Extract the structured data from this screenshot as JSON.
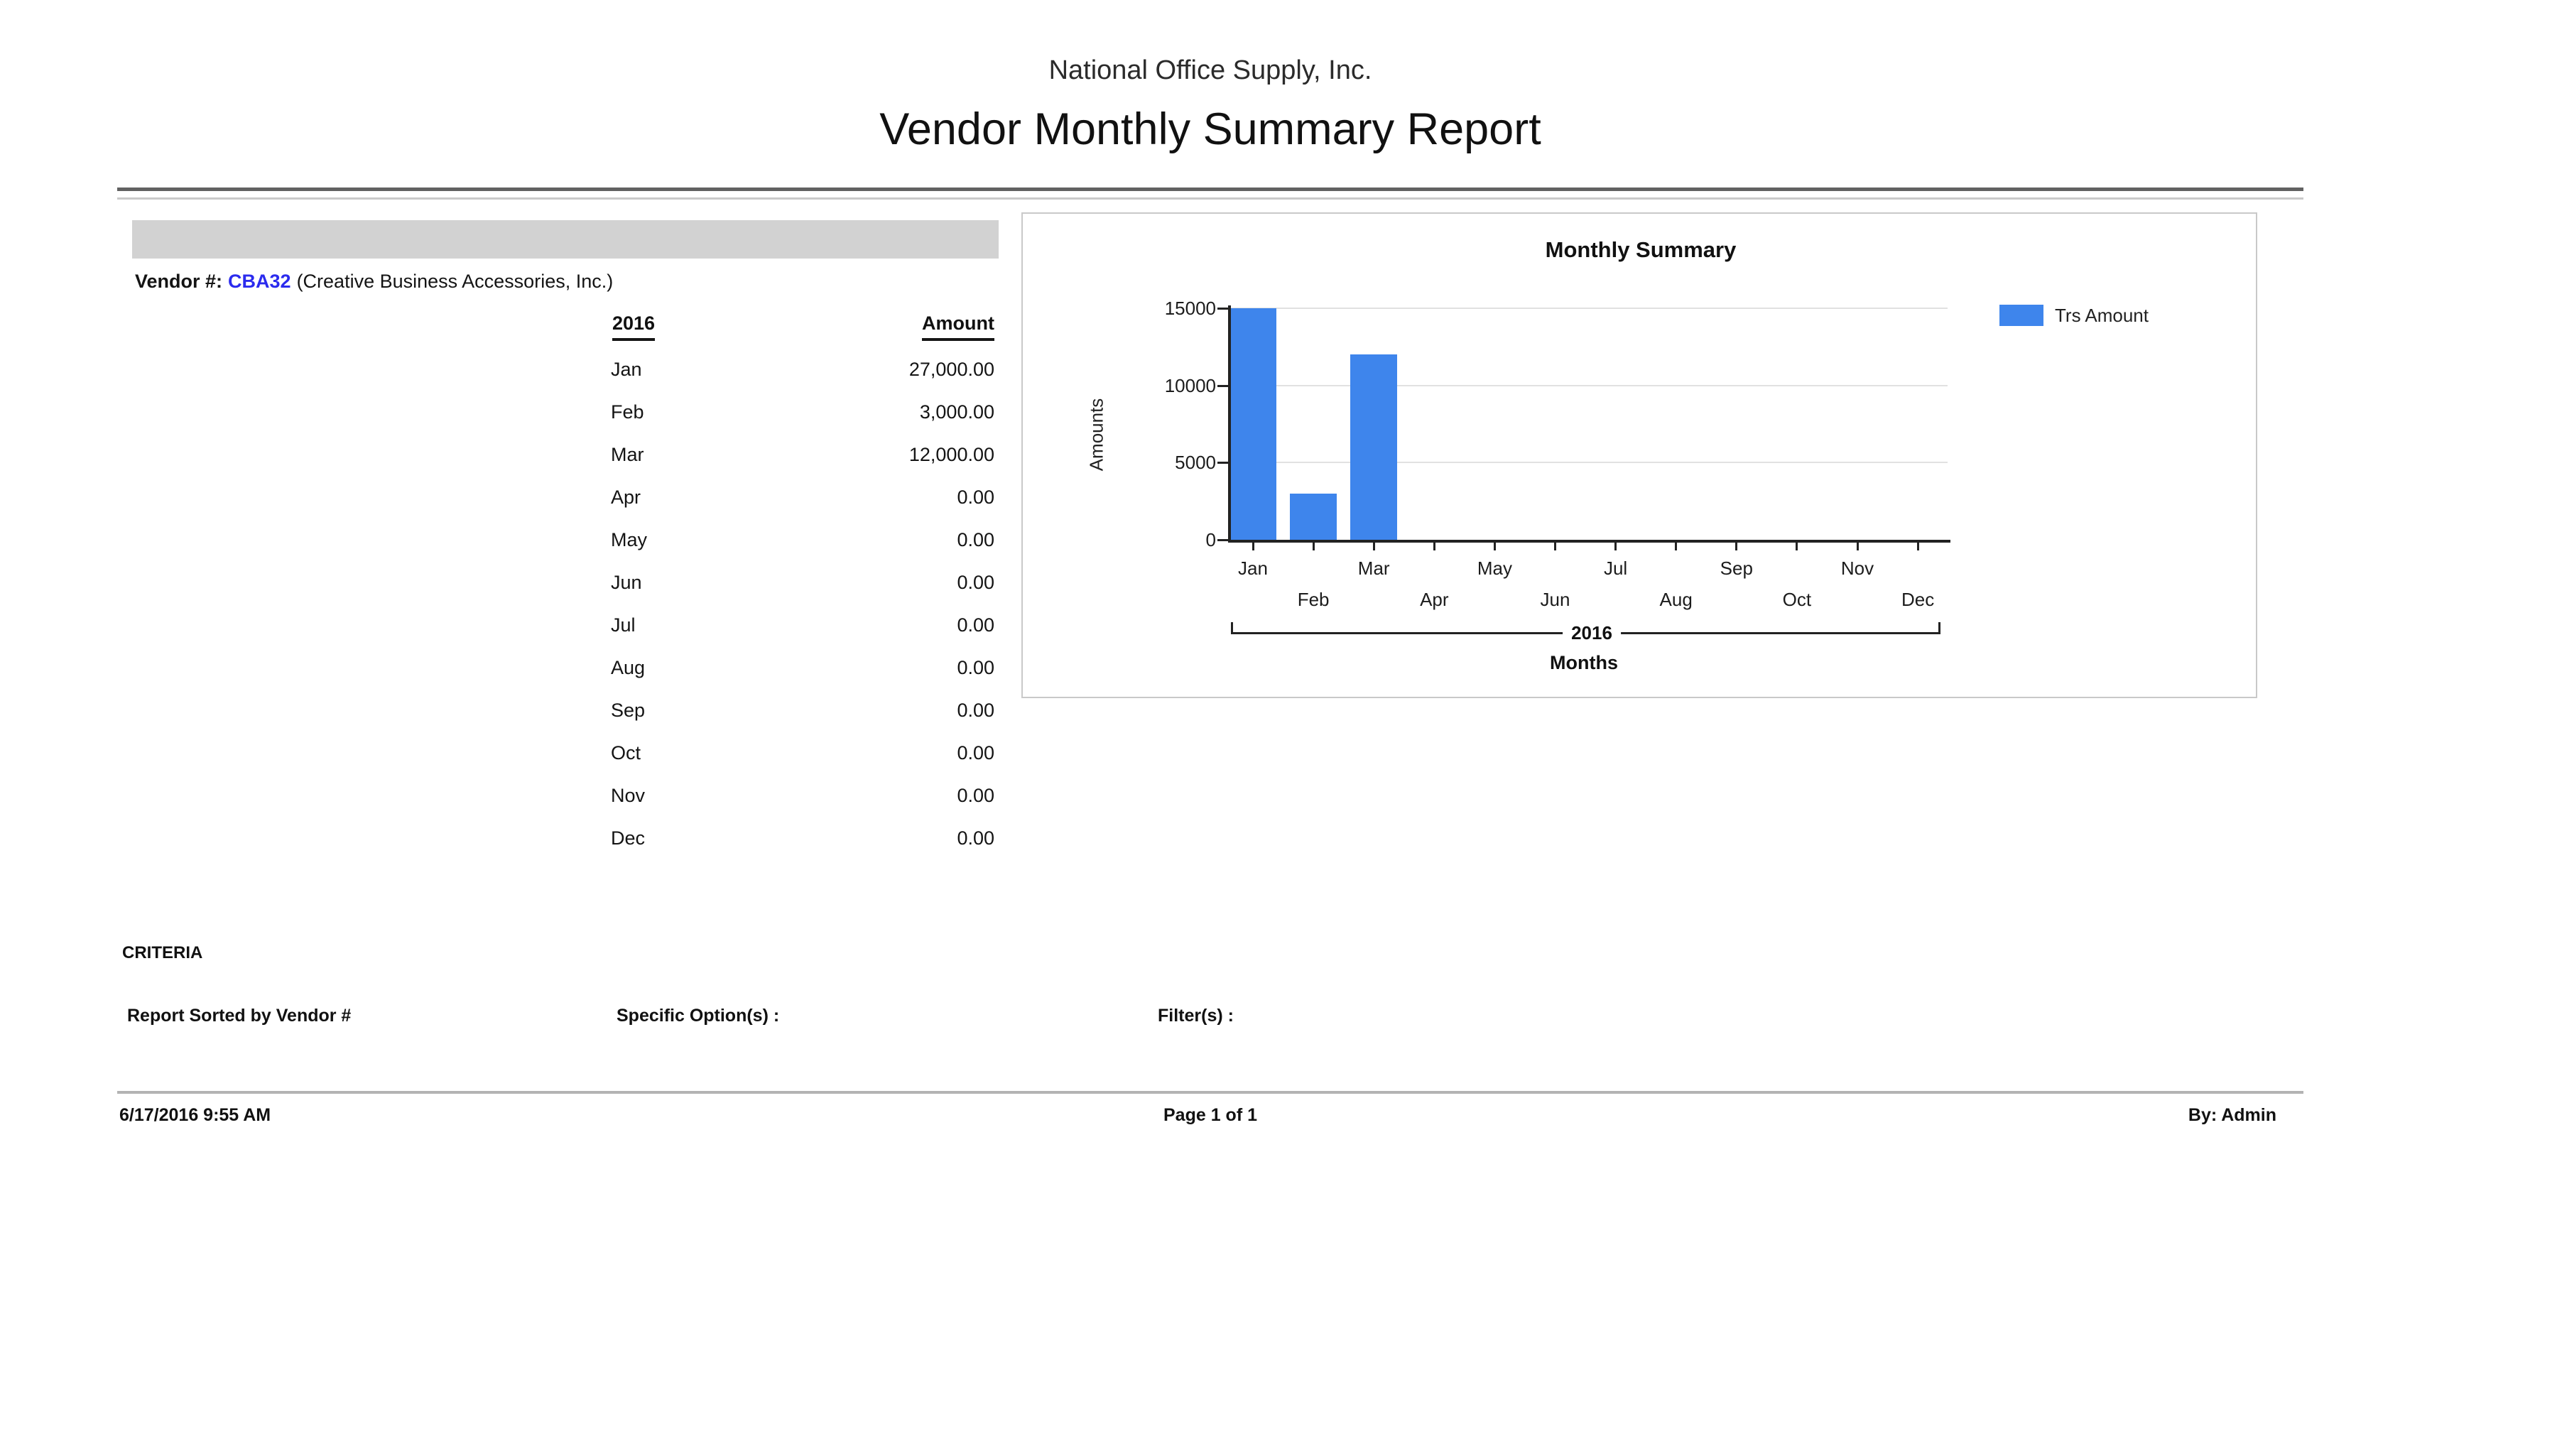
{
  "report": {
    "company": "National Office Supply, Inc.",
    "title": "Vendor Monthly Summary Report"
  },
  "vendor": {
    "label": "Vendor #:",
    "number": "CBA32",
    "name": "(Creative Business Accessories, Inc.)"
  },
  "table": {
    "year_header": "2016",
    "amount_header": "Amount",
    "rows": [
      {
        "month": "Jan",
        "amount": "27,000.00"
      },
      {
        "month": "Feb",
        "amount": "3,000.00"
      },
      {
        "month": "Mar",
        "amount": "12,000.00"
      },
      {
        "month": "Apr",
        "amount": "0.00"
      },
      {
        "month": "May",
        "amount": "0.00"
      },
      {
        "month": "Jun",
        "amount": "0.00"
      },
      {
        "month": "Jul",
        "amount": "0.00"
      },
      {
        "month": "Aug",
        "amount": "0.00"
      },
      {
        "month": "Sep",
        "amount": "0.00"
      },
      {
        "month": "Oct",
        "amount": "0.00"
      },
      {
        "month": "Nov",
        "amount": "0.00"
      },
      {
        "month": "Dec",
        "amount": "0.00"
      }
    ]
  },
  "chart_data": {
    "type": "bar",
    "title": "Monthly Summary",
    "categories": [
      "Jan",
      "Feb",
      "Mar",
      "Apr",
      "May",
      "Jun",
      "Jul",
      "Aug",
      "Sep",
      "Oct",
      "Nov",
      "Dec"
    ],
    "series": [
      {
        "name": "Trs Amount",
        "values": [
          27000,
          3000,
          12000,
          0,
          0,
          0,
          0,
          0,
          0,
          0,
          0,
          0
        ]
      }
    ],
    "xlabel": "Months",
    "ylabel": "Amounts",
    "x_group_label": "2016",
    "ylim": [
      0,
      15000
    ],
    "yticks": [
      0,
      5000,
      10000,
      15000
    ],
    "grid": "horizontal",
    "legend_position": "right",
    "bars_clipped_at_ymax": true,
    "bar_color": "#3e85ec"
  },
  "criteria": {
    "heading": "CRITERIA",
    "sorted_by": "Report Sorted by Vendor #",
    "specific_options": "Specific Option(s) :",
    "filters": "Filter(s) :"
  },
  "footer": {
    "datetime": "6/17/2016 9:55 AM",
    "page": "Page 1 of 1",
    "by": "By: Admin"
  },
  "colors": {
    "bar_blue": "#3e85ec",
    "link_blue": "#2b2bee",
    "band_gray": "#d2d2d2",
    "chart_border": "#c9c9c9",
    "gridline": "#e1e1e1"
  }
}
